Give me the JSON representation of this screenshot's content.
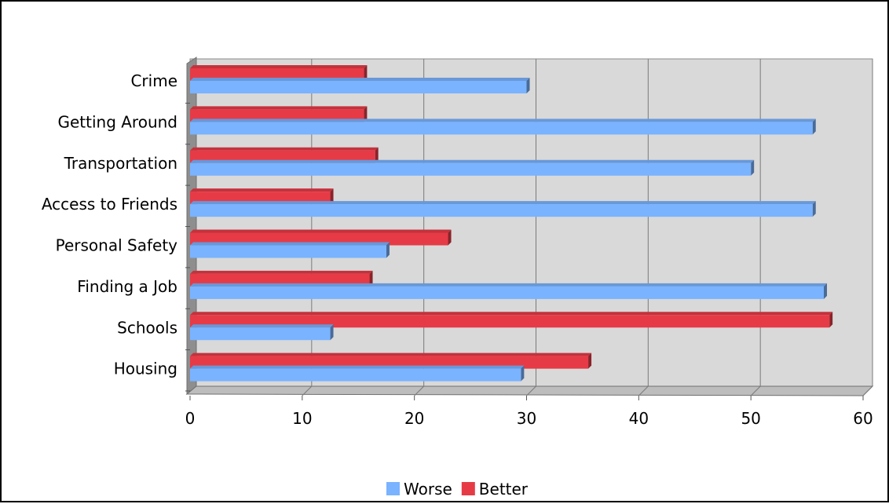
{
  "chart_data": {
    "type": "bar",
    "orientation": "horizontal",
    "categories": [
      "Crime",
      "Getting Around",
      "Transportation",
      "Access to Friends",
      "Personal Safety",
      "Finding a Job",
      "Schools",
      "Housing"
    ],
    "series": [
      {
        "name": "Worse",
        "values": [
          30,
          55.5,
          50,
          55.5,
          17.5,
          56.5,
          12.5,
          29.5
        ]
      },
      {
        "name": "Better",
        "values": [
          15.5,
          15.5,
          16.5,
          12.5,
          23,
          16,
          57,
          35.5
        ]
      }
    ],
    "xlim": [
      0,
      60
    ],
    "xticks": [
      "0",
      "10",
      "20",
      "30",
      "40",
      "50",
      "60"
    ],
    "grid": true,
    "legend_position": "bottom",
    "colors": {
      "Worse": "#7ab3ff",
      "Better": "#e63b46"
    }
  }
}
